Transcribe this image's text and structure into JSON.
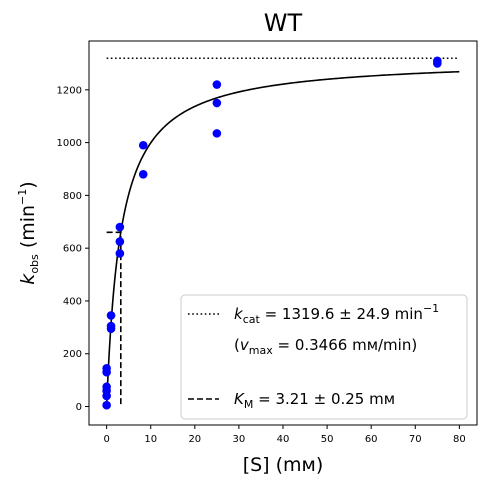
{
  "chart_data": {
    "type": "scatter",
    "title": "WT",
    "xlabel": "[S] (mм)",
    "ylabel": "k_obs (min⁻¹)",
    "ylabel_parts": {
      "main": "k",
      "sub": "obs",
      "unit_open": " (min",
      "unit_sup": "−1",
      "unit_close": ")"
    },
    "xlim": [
      -4,
      84
    ],
    "ylim": [
      -70,
      1385
    ],
    "xticks": [
      0,
      10,
      20,
      30,
      40,
      50,
      60,
      70,
      80
    ],
    "yticks": [
      0,
      200,
      400,
      600,
      800,
      1000,
      1200
    ],
    "grid": false,
    "legend_position": "lower-right",
    "series": [
      {
        "kind": "points",
        "color": "#0000ff",
        "points": [
          [
            0,
            5
          ],
          [
            0,
            40
          ],
          [
            0,
            60
          ],
          [
            0,
            75
          ],
          [
            0,
            130
          ],
          [
            0,
            145
          ],
          [
            1,
            295
          ],
          [
            1,
            305
          ],
          [
            1,
            345
          ],
          [
            3,
            580
          ],
          [
            3,
            625
          ],
          [
            3,
            680
          ],
          [
            8.3,
            880
          ],
          [
            8.3,
            990
          ],
          [
            25,
            1035
          ],
          [
            25,
            1150
          ],
          [
            25,
            1220
          ],
          [
            75,
            1300
          ],
          [
            75,
            1310
          ]
        ]
      },
      {
        "kind": "fit",
        "color": "#000000",
        "equation": "y = kcat * x / (KM + x)",
        "kcat": 1319.6,
        "KM": 3.21,
        "x_range": [
          0,
          80
        ]
      },
      {
        "kind": "kcat-line",
        "color": "#000000",
        "style": "dotted",
        "y": 1319.6,
        "x_range": [
          0,
          80
        ]
      },
      {
        "kind": "km-line",
        "color": "#000000",
        "style": "dashed",
        "x": 3.21,
        "y": 660,
        "x_from": 0
      }
    ],
    "legend": {
      "kcat_entry": {
        "symbol": "k",
        "sub": "cat",
        "value": " = 1319.6 ± 24.9 min",
        "sup": "−1"
      },
      "vmax_entry": {
        "open": "(",
        "symbol": "v",
        "sub": "max",
        "value": " = 0.3466 mм/min)"
      },
      "km_entry": {
        "symbol": "K",
        "sub": "M",
        "value": " = 3.21 ± 0.25 mм"
      }
    }
  }
}
